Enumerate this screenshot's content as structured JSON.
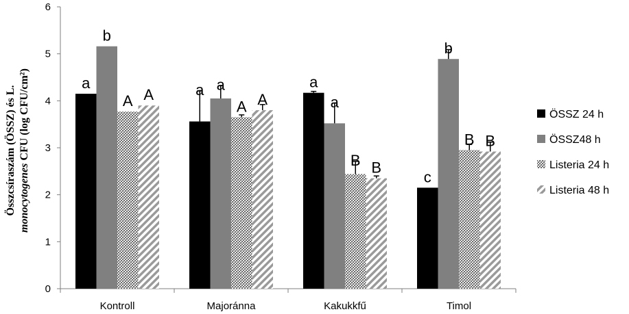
{
  "chart_data": {
    "type": "bar",
    "title": "",
    "xlabel": "",
    "ylabel": {
      "line1": "Összcsíraszám (ÖSSZ) és L.",
      "line2_italic": "monocytogenes",
      "line2_rest": " CFU (log CFU/cm²)"
    },
    "ylim": [
      0,
      6
    ],
    "yticks": [
      "0",
      "1",
      "2",
      "3",
      "4",
      "5",
      "6"
    ],
    "categories": [
      "Kontroll",
      "Majoránna",
      "Kakukkfű",
      "Timol"
    ],
    "series": [
      {
        "name": "ÖSSZ 24 h",
        "style": "solid-black",
        "color": "#000000",
        "values": [
          4.15,
          3.56,
          4.17,
          2.15
        ],
        "errors": [
          0,
          0.65,
          0.03,
          0
        ],
        "labels": [
          "a",
          "a",
          "a",
          "c"
        ]
      },
      {
        "name": "ÖSSZ48 h",
        "style": "solid-gray",
        "color": "#808080",
        "values": [
          5.16,
          4.05,
          3.52,
          4.89
        ],
        "errors": [
          0,
          0.27,
          0.43,
          0.2
        ],
        "labels": [
          "b",
          "a",
          "a",
          "b"
        ]
      },
      {
        "name": "Listeria 24 h",
        "style": "crosshatch",
        "color": "#8c8c8c",
        "values": [
          3.77,
          3.65,
          2.44,
          2.95
        ],
        "errors": [
          0,
          0.05,
          0.27,
          0.12
        ],
        "labels": [
          "A",
          "A",
          "B",
          "B"
        ]
      },
      {
        "name": "Listeria 48 h",
        "style": "diagonal",
        "color": "#9a9a9a",
        "values": [
          3.9,
          3.8,
          2.35,
          2.92
        ],
        "errors": [
          0,
          0.12,
          0.05,
          0.2
        ],
        "labels": [
          "A",
          "A",
          "B",
          "B"
        ]
      }
    ],
    "grid": false,
    "legend_position": "right"
  }
}
